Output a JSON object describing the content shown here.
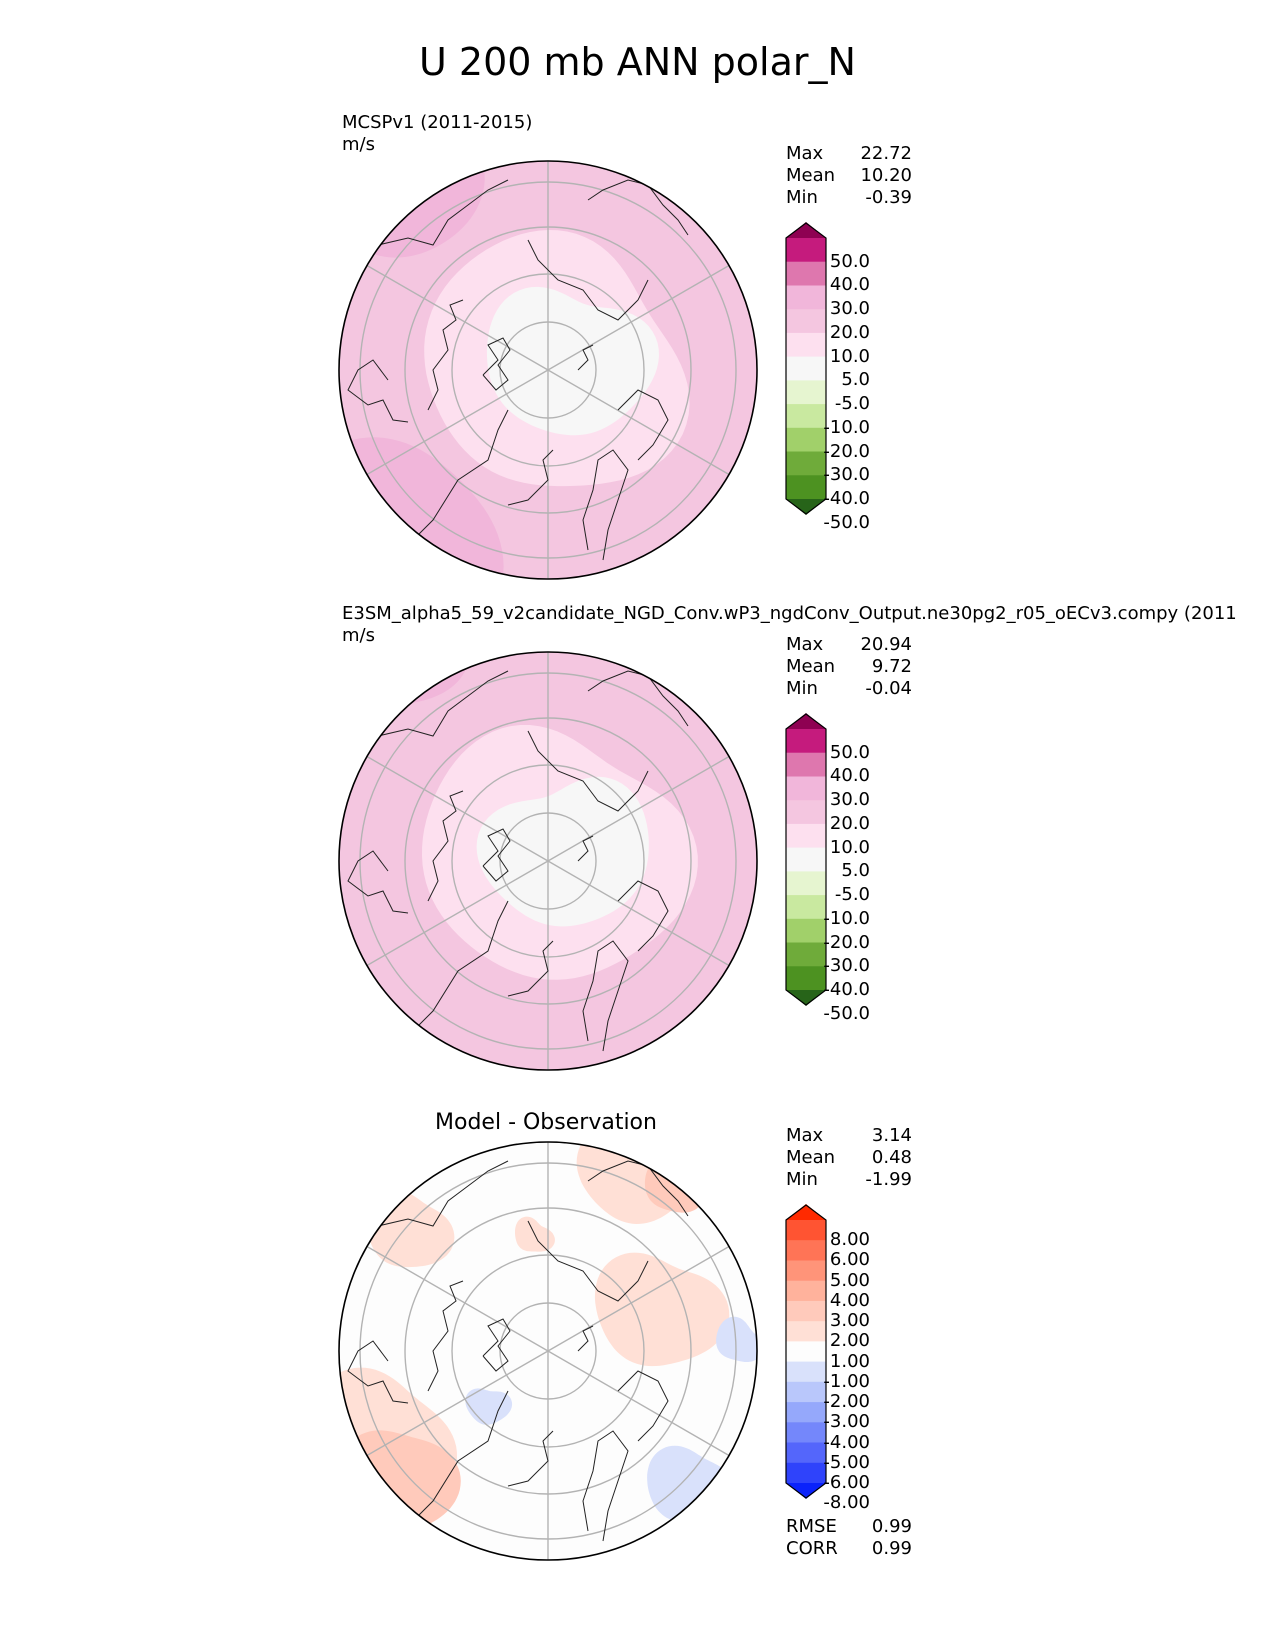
{
  "figure": {
    "title": "U 200 mb ANN polar_N"
  },
  "chart_data": [
    {
      "type": "heatmap",
      "projection": "north-polar-stereographic",
      "title": "MCSPv1 (2011-2015)",
      "units": "m/s",
      "stats": {
        "max_label": "Max",
        "max": "22.72",
        "mean_label": "Mean",
        "mean": "10.20",
        "min_label": "Min",
        "min": "-0.39"
      },
      "colorbar": {
        "levels": [
          "50.0",
          "40.0",
          "30.0",
          "20.0",
          "10.0",
          "5.0",
          "-5.0",
          "-10.0",
          "-20.0",
          "-30.0",
          "-40.0",
          "-50.0"
        ],
        "colors": [
          "#8e0152",
          "#c51b7d",
          "#de77ae",
          "#f1b6da",
          "#f4c6e0",
          "#fde0ef",
          "#f7f7f7",
          "#e6f5d0",
          "#c9e9a0",
          "#a1d06a",
          "#6fab3a",
          "#4d9221",
          "#276419"
        ]
      },
      "field_summary": {
        "outer_band": "10-20",
        "mid_band": "5-10",
        "pole_region": "-5-5"
      }
    },
    {
      "type": "heatmap",
      "projection": "north-polar-stereographic",
      "title": "E3SM_alpha5_59_v2candidate_NGD_Conv.wP3_ngdConv_Output.ne30pg2_r05_oECv3.compy (2011",
      "units": "m/s",
      "stats": {
        "max_label": "Max",
        "max": "20.94",
        "mean_label": "Mean",
        "mean": "9.72",
        "min_label": "Min",
        "min": "-0.04"
      },
      "colorbar": {
        "levels": [
          "50.0",
          "40.0",
          "30.0",
          "20.0",
          "10.0",
          "5.0",
          "-5.0",
          "-10.0",
          "-20.0",
          "-30.0",
          "-40.0",
          "-50.0"
        ],
        "colors": [
          "#8e0152",
          "#c51b7d",
          "#de77ae",
          "#f1b6da",
          "#f4c6e0",
          "#fde0ef",
          "#f7f7f7",
          "#e6f5d0",
          "#c9e9a0",
          "#a1d06a",
          "#6fab3a",
          "#4d9221",
          "#276419"
        ]
      },
      "field_summary": {
        "outer_band": "10-20",
        "mid_band": "5-10",
        "pole_region": "-5-5"
      }
    },
    {
      "type": "heatmap",
      "projection": "north-polar-stereographic",
      "title": "Model - Observation",
      "units": "",
      "stats": {
        "max_label": "Max",
        "max": "3.14",
        "mean_label": "Mean",
        "mean": "0.48",
        "min_label": "Min",
        "min": "-1.99"
      },
      "metrics": {
        "rmse_label": "RMSE",
        "rmse": "0.99",
        "corr_label": "CORR",
        "corr": "0.99"
      },
      "colorbar": {
        "levels": [
          "8.00",
          "6.00",
          "5.00",
          "4.00",
          "3.00",
          "2.00",
          "1.00",
          "-1.00",
          "-2.00",
          "-3.00",
          "-4.00",
          "-5.00",
          "-6.00",
          "-8.00"
        ],
        "colors": [
          "#ff2a00",
          "#ff5432",
          "#ff7456",
          "#ff9479",
          "#ffb29c",
          "#ffcabb",
          "#ffe0d6",
          "#fdfdfd",
          "#d9e1fb",
          "#b9c7fb",
          "#95a8fb",
          "#7487fb",
          "#5466fb",
          "#2f43fb",
          "#0a22fb"
        ]
      },
      "field_summary": {
        "dominant": "-1-1"
      }
    }
  ]
}
